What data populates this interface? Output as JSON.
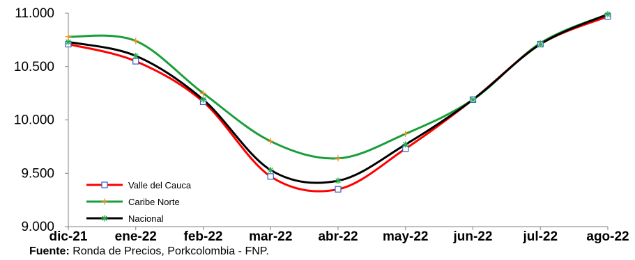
{
  "chart_data": {
    "type": "line",
    "categories": [
      "dic-21",
      "ene-22",
      "feb-22",
      "mar-22",
      "abr-22",
      "may-22",
      "jun-22",
      "jul-22",
      "ago-22"
    ],
    "ylim": [
      9000,
      11000
    ],
    "yticks": [
      9000,
      9500,
      10000,
      10500,
      11000
    ],
    "ytick_labels": [
      "9.000",
      "9.500",
      "10.000",
      "10.500",
      "11.000"
    ],
    "grid": false,
    "legend_position": "bottom-left",
    "series": [
      {
        "name": "Valle del Cauca",
        "color": "#ff0000",
        "marker": "square",
        "values": [
          10710,
          10550,
          10170,
          9470,
          9350,
          9730,
          10190,
          10710,
          10970
        ]
      },
      {
        "name": "Caribe Norte",
        "color": "#1a9e3a",
        "marker": "plus",
        "values": [
          10780,
          10740,
          10250,
          9800,
          9640,
          9870,
          10190,
          10720,
          10990
        ]
      },
      {
        "name": "Nacional",
        "color": "#000000",
        "marker": "star",
        "values": [
          10730,
          10600,
          10190,
          9530,
          9430,
          9770,
          10190,
          10710,
          10990
        ]
      }
    ]
  },
  "source": {
    "label": "Fuente:",
    "text": " Ronda de Precios, Porkcolombia  - FNP."
  }
}
